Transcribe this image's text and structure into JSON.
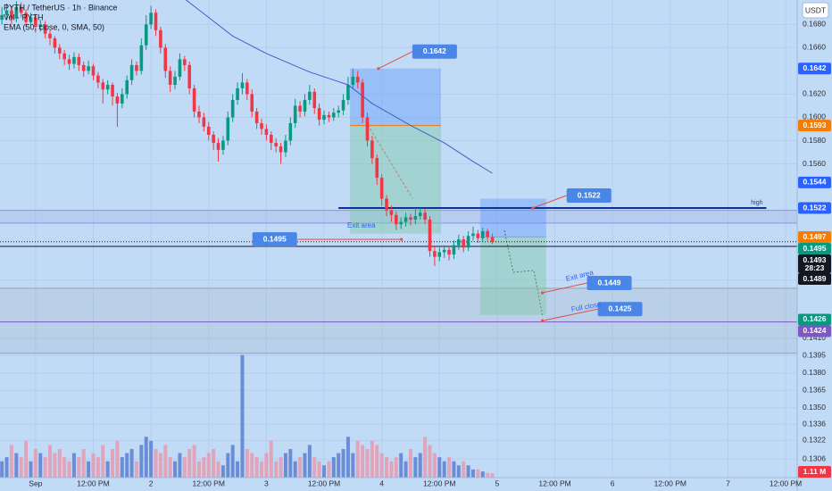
{
  "chart_data": {
    "type": "candlestick",
    "title": "PYTH / TetherUS · 1h · Binance",
    "subtitles": [
      "Vol · PYTH",
      "EMA (50, close, 0, SMA, 50)"
    ],
    "currency": "USDT",
    "x": [
      -7,
      -6,
      -5,
      -4,
      -3,
      -2,
      -1,
      0,
      1,
      2,
      3,
      4,
      5,
      6,
      7,
      8,
      9,
      10,
      11,
      12,
      13,
      14,
      15,
      16,
      17,
      18,
      19,
      20,
      21,
      22,
      23,
      24,
      25,
      26,
      27,
      28,
      29,
      30,
      31,
      32,
      33,
      34,
      35,
      36,
      37,
      38,
      39,
      40,
      41,
      42,
      43,
      44,
      45,
      46,
      47,
      48,
      49,
      50,
      51,
      52,
      53,
      54,
      55,
      56,
      57,
      58,
      59,
      60,
      61,
      62,
      63,
      64,
      65,
      66,
      67,
      68,
      69,
      70,
      71,
      72,
      73,
      74,
      75,
      76,
      77,
      78,
      79,
      80,
      81,
      82,
      83,
      84,
      85,
      86,
      87,
      88,
      89,
      90,
      91,
      92,
      93,
      94,
      95
    ],
    "open": [
      0.1684,
      0.1688,
      0.1692,
      0.1685,
      0.1695,
      0.169,
      0.1682,
      0.1686,
      0.1678,
      0.168,
      0.1672,
      0.1668,
      0.166,
      0.1655,
      0.165,
      0.1646,
      0.1652,
      0.1645,
      0.164,
      0.1644,
      0.1636,
      0.163,
      0.1624,
      0.1628,
      0.1618,
      0.1612,
      0.162,
      0.1632,
      0.1645,
      0.164,
      0.1662,
      0.168,
      0.169,
      0.1675,
      0.166,
      0.164,
      0.1628,
      0.1635,
      0.165,
      0.1645,
      0.1625,
      0.1605,
      0.16,
      0.1592,
      0.1585,
      0.1578,
      0.1572,
      0.158,
      0.16,
      0.1615,
      0.1625,
      0.163,
      0.162,
      0.1605,
      0.1595,
      0.159,
      0.1585,
      0.1578,
      0.1575,
      0.157,
      0.158,
      0.1595,
      0.161,
      0.1605,
      0.1615,
      0.1622,
      0.1608,
      0.1598,
      0.1602,
      0.16,
      0.1604,
      0.1606,
      0.1615,
      0.1628,
      0.1635,
      0.163,
      0.16,
      0.158,
      0.1565,
      0.1548,
      0.153,
      0.152,
      0.1516,
      0.1508,
      0.151,
      0.1514,
      0.1512,
      0.1515,
      0.1518,
      0.1512,
      0.1485,
      0.148,
      0.1484,
      0.1486,
      0.1482,
      0.149,
      0.1495,
      0.1488,
      0.1498,
      0.15,
      0.1496,
      0.1502,
      0.1497
    ],
    "high": [
      0.1695,
      0.1698,
      0.1696,
      0.17,
      0.1699,
      0.1693,
      0.169,
      0.1689,
      0.1684,
      0.1683,
      0.1675,
      0.167,
      0.1663,
      0.1658,
      0.1654,
      0.1656,
      0.1655,
      0.1648,
      0.1649,
      0.1646,
      0.1639,
      0.1633,
      0.1632,
      0.163,
      0.1621,
      0.1625,
      0.1636,
      0.165,
      0.1648,
      0.1668,
      0.1688,
      0.1696,
      0.1693,
      0.1678,
      0.1663,
      0.1644,
      0.164,
      0.1655,
      0.1653,
      0.1648,
      0.1628,
      0.161,
      0.1604,
      0.1596,
      0.1588,
      0.1582,
      0.1584,
      0.1605,
      0.162,
      0.163,
      0.1638,
      0.1633,
      0.1624,
      0.1608,
      0.1599,
      0.1594,
      0.1588,
      0.1582,
      0.1578,
      0.1585,
      0.16,
      0.1616,
      0.1614,
      0.162,
      0.1628,
      0.1625,
      0.1612,
      0.1606,
      0.1605,
      0.1608,
      0.161,
      0.162,
      0.1635,
      0.1642,
      0.164,
      0.1633,
      0.1604,
      0.1584,
      0.1568,
      0.1551,
      0.1533,
      0.1524,
      0.1519,
      0.1514,
      0.1518,
      0.1517,
      0.1522,
      0.1522,
      0.1521,
      0.1515,
      0.1489,
      0.1488,
      0.149,
      0.1489,
      0.1494,
      0.1499,
      0.1498,
      0.1502,
      0.1506,
      0.1503,
      0.1505,
      0.1504,
      0.15
    ],
    "low": [
      0.168,
      0.1684,
      0.168,
      0.1682,
      0.1686,
      0.1678,
      0.1679,
      0.1673,
      0.1674,
      0.1668,
      0.1662,
      0.1655,
      0.165,
      0.1645,
      0.1641,
      0.1642,
      0.164,
      0.1635,
      0.1637,
      0.1632,
      0.1625,
      0.1612,
      0.162,
      0.161,
      0.1592,
      0.1608,
      0.1616,
      0.1628,
      0.1636,
      0.1637,
      0.1658,
      0.1676,
      0.167,
      0.1655,
      0.1634,
      0.1622,
      0.1624,
      0.1632,
      0.164,
      0.162,
      0.16,
      0.1595,
      0.1588,
      0.158,
      0.1572,
      0.1562,
      0.1568,
      0.1576,
      0.1596,
      0.1611,
      0.162,
      0.1615,
      0.16,
      0.159,
      0.1585,
      0.158,
      0.1572,
      0.157,
      0.156,
      0.1566,
      0.1576,
      0.1591,
      0.16,
      0.1601,
      0.1611,
      0.1603,
      0.1593,
      0.1594,
      0.1596,
      0.1597,
      0.16,
      0.1602,
      0.1611,
      0.1624,
      0.1625,
      0.1595,
      0.1575,
      0.156,
      0.1542,
      0.1524,
      0.1515,
      0.151,
      0.1503,
      0.1504,
      0.1506,
      0.1507,
      0.1508,
      0.1512,
      0.1508,
      0.148,
      0.1472,
      0.1476,
      0.1479,
      0.1477,
      0.1478,
      0.1486,
      0.1484,
      0.1485,
      0.1494,
      0.1492,
      0.1493,
      0.1494,
      0.1491
    ],
    "close": [
      0.1688,
      0.1692,
      0.1685,
      0.1695,
      0.169,
      0.1682,
      0.1686,
      0.1678,
      0.168,
      0.1672,
      0.1668,
      0.166,
      0.1655,
      0.165,
      0.1646,
      0.1652,
      0.1645,
      0.164,
      0.1644,
      0.1636,
      0.163,
      0.1624,
      0.1628,
      0.1618,
      0.1612,
      0.162,
      0.1632,
      0.1645,
      0.164,
      0.1662,
      0.168,
      0.169,
      0.1675,
      0.166,
      0.164,
      0.1628,
      0.1635,
      0.165,
      0.1645,
      0.1625,
      0.1605,
      0.16,
      0.1592,
      0.1585,
      0.1578,
      0.1572,
      0.158,
      0.16,
      0.1615,
      0.1625,
      0.163,
      0.162,
      0.1605,
      0.1595,
      0.159,
      0.1585,
      0.1578,
      0.1575,
      0.157,
      0.158,
      0.1595,
      0.161,
      0.1605,
      0.1615,
      0.1622,
      0.1608,
      0.1598,
      0.1602,
      0.16,
      0.1604,
      0.1606,
      0.1615,
      0.1628,
      0.1635,
      0.163,
      0.16,
      0.158,
      0.1565,
      0.1548,
      0.153,
      0.152,
      0.1516,
      0.1508,
      0.151,
      0.1514,
      0.1512,
      0.1515,
      0.1518,
      0.1512,
      0.1485,
      0.148,
      0.1484,
      0.1486,
      0.1482,
      0.149,
      0.1495,
      0.1488,
      0.1498,
      0.15,
      0.1496,
      0.1502,
      0.1497,
      0.1493
    ],
    "volume": [
      4,
      5,
      8,
      6,
      5,
      9,
      4,
      7,
      6,
      5,
      8,
      6,
      7,
      5,
      4,
      6,
      5,
      7,
      4,
      6,
      5,
      8,
      4,
      7,
      9,
      5,
      6,
      7,
      4,
      8,
      10,
      9,
      7,
      6,
      8,
      5,
      4,
      6,
      5,
      7,
      8,
      4,
      5,
      6,
      7,
      4,
      3,
      6,
      8,
      4,
      30,
      7,
      6,
      5,
      4,
      6,
      9,
      4,
      5,
      6,
      7,
      4,
      5,
      6,
      8,
      5,
      4,
      3,
      4,
      5,
      6,
      7,
      10,
      6,
      9,
      8,
      7,
      9,
      8,
      6,
      5,
      4,
      5,
      6,
      4,
      7,
      5,
      6,
      10,
      8,
      6,
      5,
      4,
      5,
      4,
      3,
      4,
      3,
      2,
      2,
      1.5,
      1.2,
      1.11
    ],
    "up_color": "#089981",
    "down_color": "#f23645",
    "volume_up_color": "#5b7fd0",
    "volume_down_color": "#e79aae",
    "volume_ylim": [
      0,
      40
    ],
    "volume_label": {
      "value": 1.11,
      "label": "1.11 M",
      "color": "#f23645"
    },
    "xlim": [
      -7.4,
      158.4
    ],
    "xticks": [
      {
        "value": 0,
        "label": "Sep"
      },
      {
        "value": 12,
        "label": "12:00 PM"
      },
      {
        "value": 24,
        "label": "2"
      },
      {
        "value": 36,
        "label": "12:00 PM"
      },
      {
        "value": 48,
        "label": "3"
      },
      {
        "value": 60,
        "label": "12:00 PM"
      },
      {
        "value": 72,
        "label": "4"
      },
      {
        "value": 84,
        "label": "12:00 PM"
      },
      {
        "value": 96,
        "label": "5"
      },
      {
        "value": 108,
        "label": "12:00 PM"
      },
      {
        "value": 120,
        "label": "6"
      },
      {
        "value": 132,
        "label": "12:00 PM"
      },
      {
        "value": 144,
        "label": "7"
      },
      {
        "value": 156,
        "label": "12:00 PM"
      }
    ],
    "ylim": [
      0.129,
      0.1701
    ],
    "yticks": [
      {
        "value": 0.168,
        "label": "0.1680"
      },
      {
        "value": 0.166,
        "label": "0.1660"
      },
      {
        "value": 0.162,
        "label": "0.1620"
      },
      {
        "value": 0.16,
        "label": "0.1600"
      },
      {
        "value": 0.158,
        "label": "0.1580"
      },
      {
        "value": 0.156,
        "label": "0.1560"
      },
      {
        "value": 0.146,
        "label": "0.1460"
      },
      {
        "value": 0.141,
        "label": "0.1410"
      },
      {
        "value": 0.1395,
        "label": "0.1395"
      },
      {
        "value": 0.138,
        "label": "0.1380"
      },
      {
        "value": 0.1365,
        "label": "0.1365"
      },
      {
        "value": 0.135,
        "label": "0.1350"
      },
      {
        "value": 0.1336,
        "label": "0.1336"
      },
      {
        "value": 0.1322,
        "label": "0.1322"
      },
      {
        "value": 0.1306,
        "label": "0.1306"
      }
    ],
    "grid": true,
    "ema": {
      "x": [
        31,
        41,
        48,
        57,
        65,
        70,
        78,
        85,
        91,
        95
      ],
      "values": [
        0.1702,
        0.167,
        0.1655,
        0.1639,
        0.1628,
        0.1612,
        0.1593,
        0.1578,
        0.1562,
        0.1552
      ],
      "color": "#3a62c9"
    },
    "positions": [
      {
        "x": [
          65.4,
          84.3
        ],
        "entry": 0.1593,
        "stop": 0.1642,
        "target": 0.15,
        "entry_color": "#f57c00"
      },
      {
        "x": [
          92.5,
          106.2
        ],
        "entry": 0.1497,
        "stop": 0.153,
        "target": 0.143,
        "entry_color": "#f77c80"
      }
    ],
    "bands": [
      {
        "from": 0.1509,
        "to": 0.152,
        "color": "#8e8fe6"
      },
      {
        "from": 0.1397,
        "to": 0.1453,
        "color": "#9aa3ae"
      }
    ],
    "levels": [
      {
        "value": 0.1522,
        "color": "#0c3299",
        "from": 63,
        "to": 152,
        "label": "high"
      },
      {
        "value": 0.1489,
        "color": "#131722"
      },
      {
        "value": 0.1424,
        "color": "#7e57c2"
      }
    ],
    "callouts": [
      {
        "x": 71.3,
        "value": 0.1642,
        "label": "0.1642"
      },
      {
        "x": 76.1,
        "value": 0.1495,
        "label": "0.1495"
      },
      {
        "x": 103.4,
        "value": 0.1522,
        "label": "0.1522"
      },
      {
        "x": 105.4,
        "value": 0.1449,
        "label": "0.1449"
      },
      {
        "x": 105.4,
        "value": 0.1425,
        "label": "0.1425"
      }
    ],
    "notes": [
      "Exit area",
      "Exit area",
      "Full close"
    ],
    "price_labels": [
      {
        "value": 0.1642,
        "label": "0.1642",
        "color": "#2962ff"
      },
      {
        "value": 0.1593,
        "label": "0.1593",
        "color": "#f57c00"
      },
      {
        "value": 0.1544,
        "label": "0.1544",
        "color": "#2962ff"
      },
      {
        "value": 0.1522,
        "label": "0.1522",
        "color": "#2962ff"
      },
      {
        "value": 0.1497,
        "label": "0.1497",
        "color": "#f57c00"
      },
      {
        "value": 0.1495,
        "label": "0.1495",
        "color": "#089981"
      }
    ],
    "current_price": {
      "value": 0.1493,
      "label": "0.1493",
      "countdown": "28:23",
      "color": "#131722"
    },
    "price_labels_low": [
      {
        "value": 0.1489,
        "label": "0.1489",
        "color": "#131722"
      },
      {
        "value": 0.1426,
        "label": "0.1426",
        "color": "#089981"
      },
      {
        "value": 0.1424,
        "label": "0.1424",
        "color": "#7e57c2"
      }
    ]
  }
}
